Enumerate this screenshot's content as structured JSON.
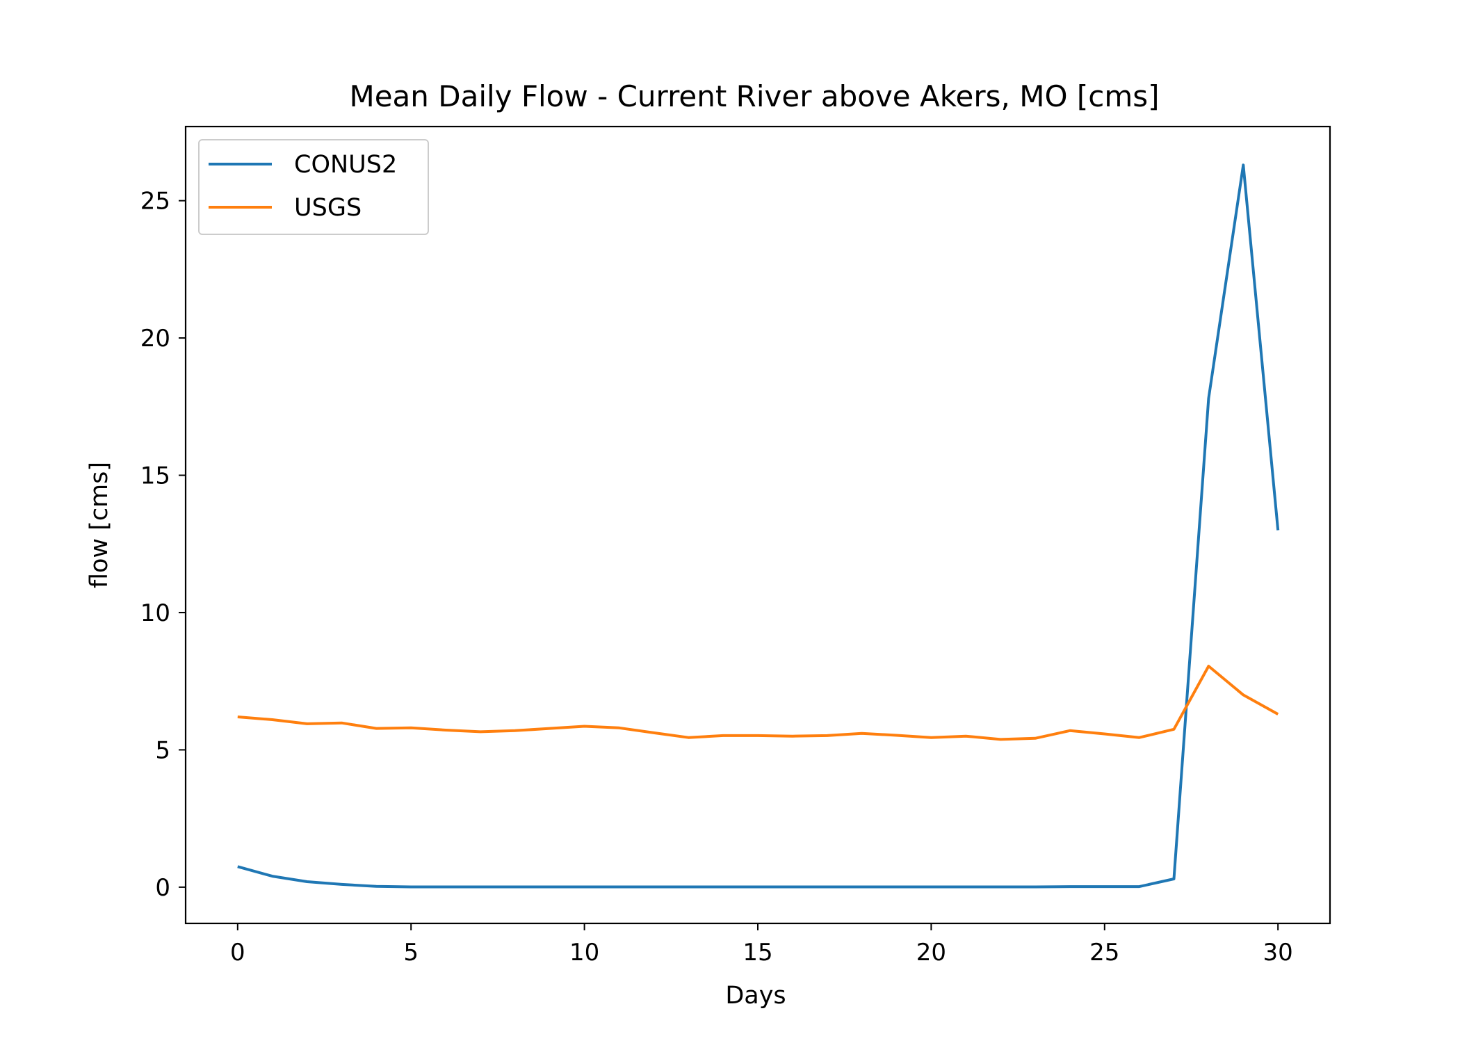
{
  "chart_data": {
    "type": "line",
    "title": "Mean Daily Flow - Current River above Akers, MO [cms]",
    "xlabel": "Days",
    "ylabel": "flow [cms]",
    "xlim": [
      -1.5,
      31.5
    ],
    "ylim": [
      -1.32,
      27.7
    ],
    "xticks": [
      0,
      5,
      10,
      15,
      20,
      25,
      30
    ],
    "yticks": [
      0,
      5,
      10,
      15,
      20,
      25
    ],
    "grid": false,
    "legend_position": "upper-left",
    "x": [
      0,
      1,
      2,
      3,
      4,
      5,
      6,
      7,
      8,
      9,
      10,
      11,
      12,
      13,
      14,
      15,
      16,
      17,
      18,
      19,
      20,
      21,
      22,
      23,
      24,
      25,
      26,
      27,
      28,
      29,
      30
    ],
    "series": [
      {
        "name": "CONUS2",
        "color": "#1f77b4",
        "values": [
          0.75,
          0.4,
          0.2,
          0.1,
          0.03,
          0.01,
          0.01,
          0.01,
          0.01,
          0.01,
          0.01,
          0.01,
          0.01,
          0.01,
          0.01,
          0.01,
          0.01,
          0.01,
          0.01,
          0.01,
          0.01,
          0.01,
          0.01,
          0.01,
          0.02,
          0.02,
          0.02,
          0.3,
          17.8,
          26.3,
          13.0
        ]
      },
      {
        "name": "USGS",
        "color": "#ff7f0e",
        "values": [
          6.2,
          6.1,
          5.95,
          5.98,
          5.78,
          5.8,
          5.72,
          5.66,
          5.7,
          5.78,
          5.86,
          5.8,
          5.62,
          5.45,
          5.52,
          5.52,
          5.5,
          5.52,
          5.6,
          5.53,
          5.45,
          5.5,
          5.38,
          5.42,
          5.7,
          5.58,
          5.45,
          5.75,
          8.05,
          7.0,
          6.3
        ]
      }
    ]
  }
}
